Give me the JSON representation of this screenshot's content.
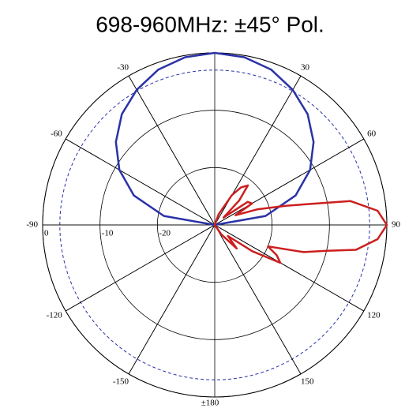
{
  "chart_data": {
    "type": "polar",
    "title": "698-960MHz: ±45° Pol.",
    "rlim": [
      -30,
      0
    ],
    "rticks": [
      0,
      -10,
      -20
    ],
    "reference_ring": -3,
    "thetaticks": [
      -150,
      -120,
      -90,
      -60,
      -30,
      30,
      60,
      90,
      120,
      150,
      {
        "value": 180,
        "label": "±180"
      }
    ],
    "series": [
      {
        "color": "#2a32a6",
        "theta": [
          -90,
          -80,
          -70,
          -60,
          -50,
          -40,
          -30,
          -20,
          -10,
          0,
          10,
          20,
          30,
          40,
          50,
          60,
          70,
          80,
          90
        ],
        "values": [
          -30,
          -21,
          -15,
          -10.8,
          -7.5,
          -4.8,
          -2.8,
          -1.2,
          -0.3,
          0,
          -0.3,
          -1.2,
          -2.8,
          -4.8,
          -7.5,
          -10.8,
          -15,
          -21,
          -30
        ]
      },
      {
        "color": "#cc1f1f",
        "theta": [
          0,
          20,
          30,
          35,
          40,
          45,
          50,
          55,
          60,
          65,
          70,
          75,
          80,
          85,
          90,
          95,
          100,
          103,
          107,
          112,
          116,
          120,
          125,
          130,
          137,
          145,
          160,
          180
        ],
        "values": [
          -30,
          -28,
          -24,
          -22,
          -21,
          -24,
          -28,
          -23,
          -22.5,
          -26,
          -22,
          -17,
          -6,
          -1.5,
          0,
          -1.5,
          -5,
          -10,
          -13.8,
          -20,
          -18,
          -16.8,
          -22,
          -27,
          -24.4,
          -28,
          -30,
          -30
        ]
      }
    ]
  }
}
